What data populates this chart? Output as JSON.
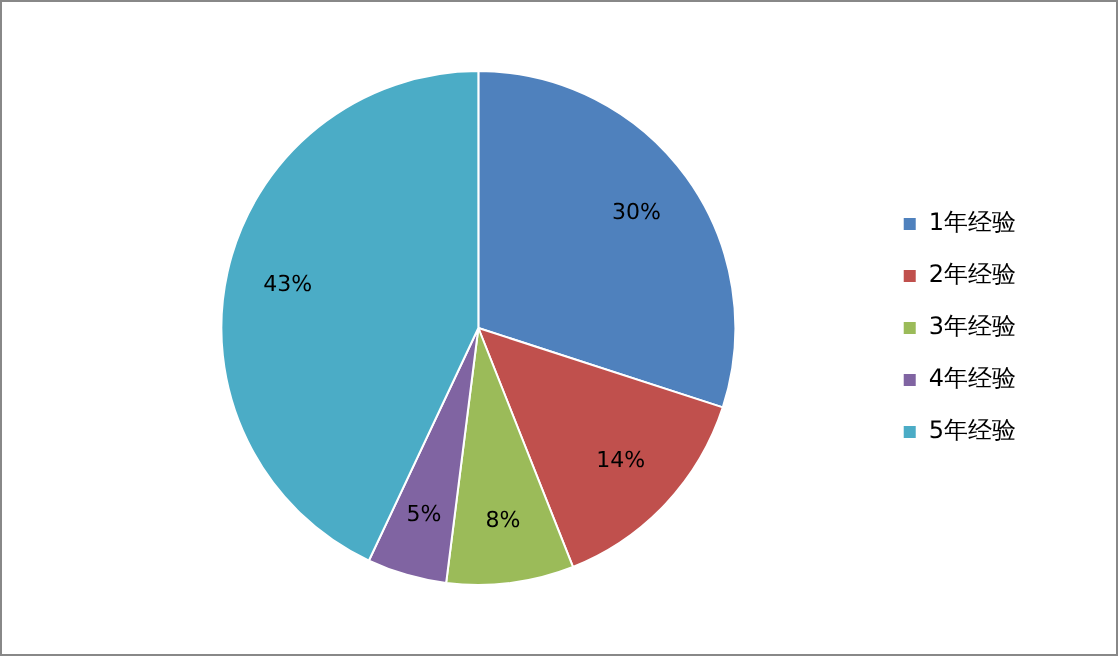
{
  "chart_data": {
    "type": "pie",
    "categories": [
      "1年经验",
      "2年经验",
      "3年经验",
      "4年经验",
      "5年经验"
    ],
    "values": [
      30,
      14,
      8,
      5,
      43
    ],
    "colors": [
      "#4f81bd",
      "#c0504d",
      "#9bbb59",
      "#8064a2",
      "#4bacc6"
    ],
    "value_labels": [
      "30%",
      "14%",
      "8%",
      "5%",
      "43%"
    ],
    "legend": "right"
  }
}
